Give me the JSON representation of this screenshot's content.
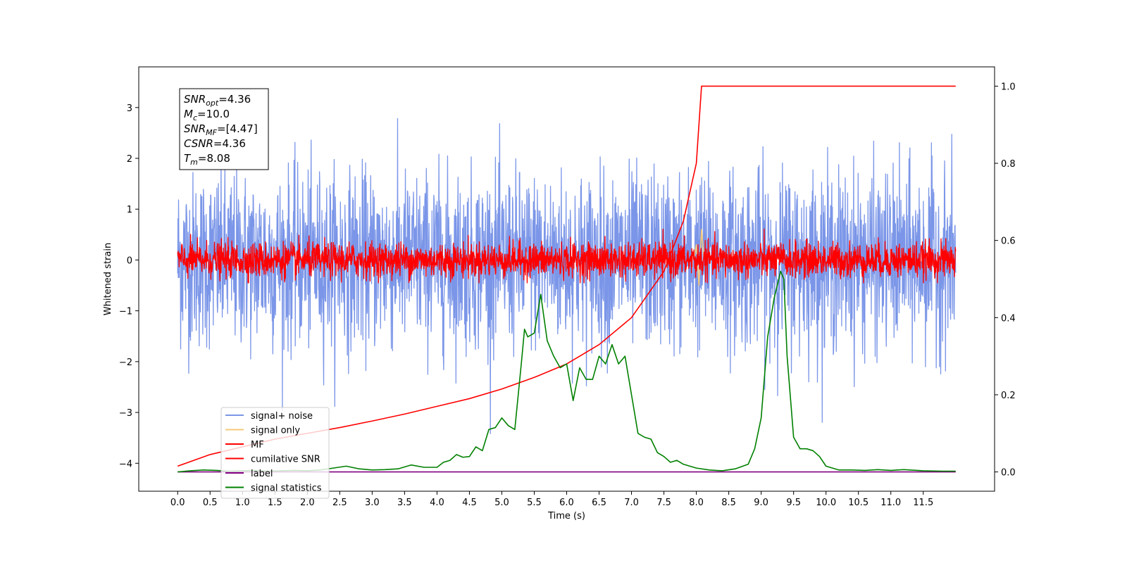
{
  "chart_data": {
    "type": "line",
    "xlabel": "Time (s)",
    "ylabel": "Whitened strain",
    "xlim": [
      -0.6,
      12.6
    ],
    "ylim": [
      -4.55,
      3.8
    ],
    "ylim_right": [
      -0.05,
      1.05
    ],
    "x_ticks": [
      0.0,
      0.5,
      1.0,
      1.5,
      2.0,
      2.5,
      3.0,
      3.5,
      4.0,
      4.5,
      5.0,
      5.5,
      6.0,
      6.5,
      7.0,
      7.5,
      8.0,
      8.5,
      9.0,
      9.5,
      10.0,
      10.5,
      11.0,
      11.5
    ],
    "x_tick_labels": [
      "0.0",
      "0.5",
      "1.0",
      "1.5",
      "2.0",
      "2.5",
      "3.0",
      "3.5",
      "4.0",
      "4.5",
      "5.0",
      "5.5",
      "6.0",
      "6.5",
      "7.0",
      "7.5",
      "8.0",
      "8.5",
      "9.0",
      "9.5",
      "10.0",
      "10.5",
      "11.0",
      "11.5"
    ],
    "y_ticks": [
      -4,
      -3,
      -2,
      -1,
      0,
      1,
      2,
      3
    ],
    "y_tick_labels": [
      "−4",
      "−3",
      "−2",
      "−1",
      "0",
      "1",
      "2",
      "3"
    ],
    "y_right_ticks": [
      0.0,
      0.2,
      0.4,
      0.6,
      0.8,
      1.0
    ],
    "y_right_tick_labels": [
      "0.0",
      "0.2",
      "0.4",
      "0.6",
      "0.8",
      "1.0"
    ],
    "grid": false,
    "legend_position": "lower-left",
    "annotation": {
      "lines": [
        {
          "italic": "SNR",
          "sub": "opt",
          "rest": "=4.36"
        },
        {
          "italic": "M",
          "sub": "c",
          "rest": "=10.0"
        },
        {
          "italic": "SNR",
          "sub": "MF",
          "rest": "=[4.47]"
        },
        {
          "italic": "CSNR",
          "sub": "",
          "rest": "=4.36"
        },
        {
          "italic": "T",
          "sub": "m",
          "rest": "=8.08"
        }
      ]
    },
    "series": [
      {
        "name": "signal+ noise",
        "color": "#7b96e8",
        "axis": "left",
        "kind": "noise",
        "x_range": [
          0.0,
          12.0
        ],
        "amplitude_std": 0.85,
        "range": [
          -4.1,
          3.4
        ]
      },
      {
        "name": "signal only",
        "color": "#f5c97a",
        "axis": "left",
        "kind": "burst",
        "x": [
          7.96,
          8.0,
          8.04,
          8.08,
          8.12
        ],
        "y": [
          0.0,
          0.3,
          -0.5,
          0.6,
          0.0
        ]
      },
      {
        "name": "MF",
        "color": "#ff0000",
        "axis": "left",
        "kind": "noise",
        "x_range": [
          0.0,
          12.0
        ],
        "amplitude_std": 0.17,
        "range": [
          -0.45,
          0.95
        ]
      },
      {
        "name": "cumilative SNR",
        "color": "#ff0000",
        "axis": "right",
        "x": [
          0.0,
          0.5,
          1.0,
          1.5,
          2.0,
          2.5,
          3.0,
          3.5,
          4.0,
          4.5,
          5.0,
          5.5,
          6.0,
          6.5,
          7.0,
          7.5,
          7.8,
          8.0,
          8.06,
          8.08,
          12.0
        ],
        "y": [
          0.015,
          0.045,
          0.065,
          0.085,
          0.1,
          0.115,
          0.132,
          0.15,
          0.17,
          0.19,
          0.215,
          0.245,
          0.28,
          0.33,
          0.4,
          0.52,
          0.65,
          0.8,
          0.95,
          1.0,
          1.0
        ]
      },
      {
        "name": "label",
        "color": "#800080",
        "axis": "right",
        "x": [
          0.0,
          12.0
        ],
        "y": [
          0.0,
          0.0
        ]
      },
      {
        "name": "signal statistics",
        "color": "#008000",
        "axis": "right",
        "x": [
          0.0,
          0.2,
          0.4,
          0.6,
          0.8,
          1.0,
          1.2,
          1.4,
          1.6,
          1.8,
          2.0,
          2.2,
          2.4,
          2.6,
          2.8,
          3.0,
          3.2,
          3.4,
          3.6,
          3.8,
          4.0,
          4.1,
          4.2,
          4.3,
          4.4,
          4.5,
          4.6,
          4.7,
          4.8,
          4.9,
          5.0,
          5.1,
          5.2,
          5.3,
          5.35,
          5.4,
          5.5,
          5.6,
          5.7,
          5.8,
          5.9,
          6.0,
          6.1,
          6.2,
          6.3,
          6.4,
          6.5,
          6.6,
          6.7,
          6.8,
          6.9,
          7.0,
          7.1,
          7.2,
          7.3,
          7.4,
          7.5,
          7.6,
          7.7,
          7.8,
          7.9,
          8.0,
          8.2,
          8.4,
          8.6,
          8.8,
          8.9,
          9.0,
          9.1,
          9.2,
          9.3,
          9.35,
          9.4,
          9.5,
          9.6,
          9.7,
          9.8,
          9.9,
          10.0,
          10.2,
          10.4,
          10.6,
          10.8,
          11.0,
          11.2,
          11.5,
          11.8,
          12.0
        ],
        "y": [
          0.0,
          0.003,
          0.005,
          0.004,
          0.002,
          0.003,
          0.004,
          0.002,
          0.003,
          0.004,
          0.003,
          0.005,
          0.01,
          0.015,
          0.008,
          0.005,
          0.006,
          0.008,
          0.018,
          0.012,
          0.012,
          0.025,
          0.03,
          0.045,
          0.038,
          0.04,
          0.065,
          0.055,
          0.11,
          0.115,
          0.14,
          0.12,
          0.11,
          0.28,
          0.37,
          0.35,
          0.36,
          0.46,
          0.34,
          0.3,
          0.27,
          0.28,
          0.185,
          0.27,
          0.24,
          0.24,
          0.3,
          0.28,
          0.33,
          0.28,
          0.3,
          0.2,
          0.1,
          0.09,
          0.085,
          0.05,
          0.04,
          0.025,
          0.03,
          0.02,
          0.015,
          0.01,
          0.005,
          0.003,
          0.008,
          0.02,
          0.06,
          0.14,
          0.35,
          0.45,
          0.52,
          0.5,
          0.3,
          0.09,
          0.06,
          0.06,
          0.055,
          0.04,
          0.015,
          0.005,
          0.005,
          0.004,
          0.006,
          0.004,
          0.006,
          0.003,
          0.002,
          0.002
        ]
      }
    ]
  }
}
